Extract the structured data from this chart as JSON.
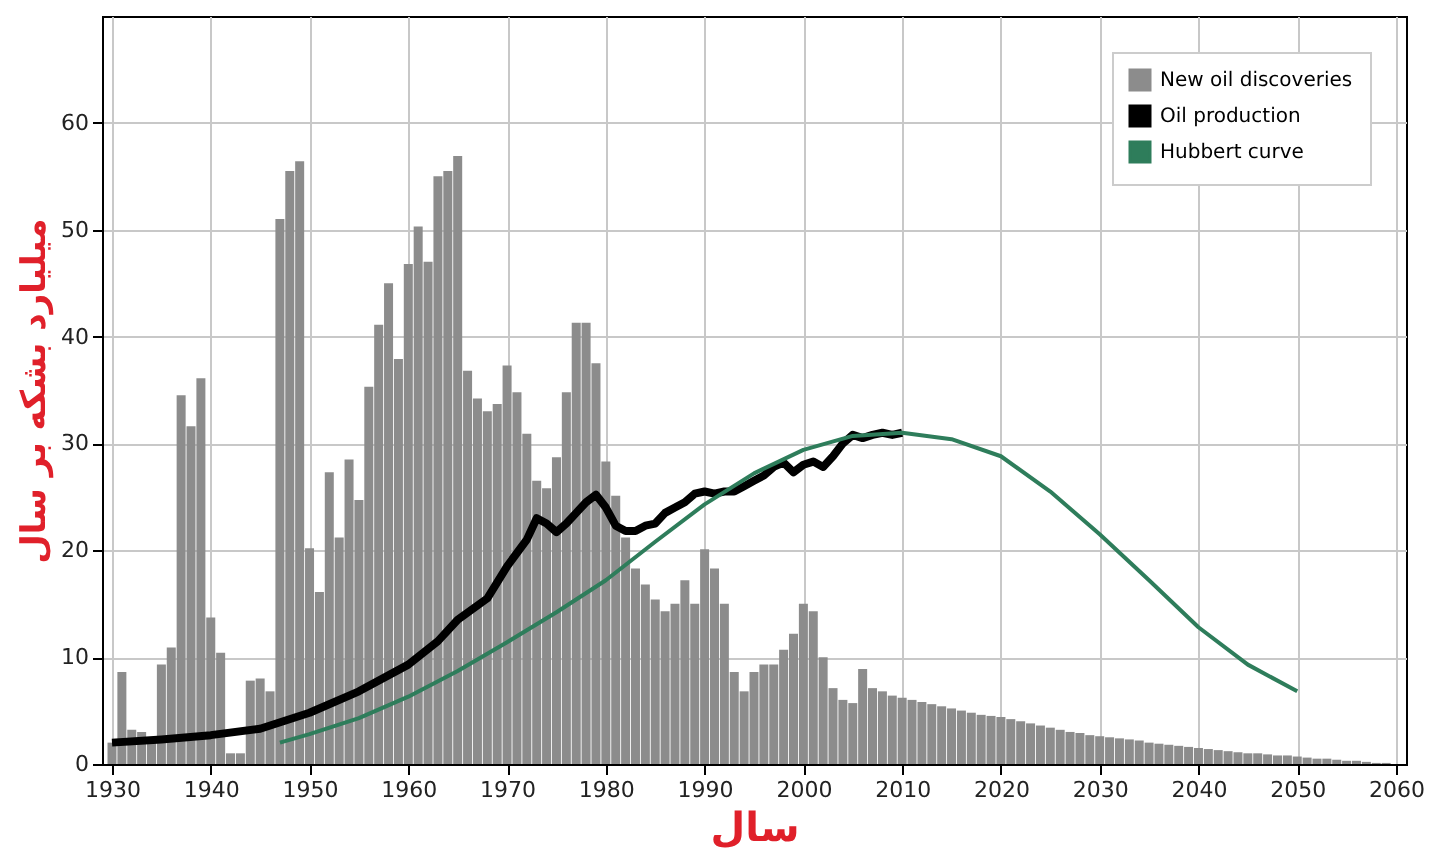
{
  "chart_data": {
    "type": "bar",
    "xlabel": "سال",
    "ylabel": "میلیارد بشکه بر سال",
    "xlim": [
      1930,
      2060
    ],
    "xticks": [
      1930,
      1940,
      1950,
      1960,
      1970,
      1980,
      1990,
      2000,
      2010,
      2020,
      2030,
      2040,
      2050,
      2060
    ],
    "ylim": [
      0,
      70
    ],
    "yticks": [
      0,
      10,
      20,
      30,
      40,
      50,
      60
    ],
    "grid": true,
    "legend": "top right",
    "series": [
      {
        "name": "New oil discoveries",
        "color": "#8c8c8c",
        "x": [
          1930,
          1931,
          1932,
          1933,
          1934,
          1935,
          1936,
          1937,
          1938,
          1939,
          1940,
          1941,
          1942,
          1943,
          1944,
          1945,
          1946,
          1947,
          1948,
          1949,
          1950,
          1951,
          1952,
          1953,
          1954,
          1955,
          1956,
          1957,
          1958,
          1959,
          1960,
          1961,
          1962,
          1963,
          1964,
          1965,
          1966,
          1967,
          1968,
          1969,
          1970,
          1971,
          1972,
          1973,
          1974,
          1975,
          1976,
          1977,
          1978,
          1979,
          1980,
          1981,
          1982,
          1983,
          1984,
          1985,
          1986,
          1987,
          1988,
          1989,
          1990,
          1991,
          1992,
          1993,
          1994,
          1995,
          1996,
          1997,
          1998,
          1999,
          2000,
          2001,
          2002,
          2003,
          2004,
          2005,
          2006,
          2007,
          2008,
          2009,
          2010,
          2011,
          2012,
          2013,
          2014,
          2015,
          2016,
          2017,
          2018,
          2019,
          2020,
          2021,
          2022,
          2023,
          2024,
          2025,
          2026,
          2027,
          2028,
          2029,
          2030,
          2031,
          2032,
          2033,
          2034,
          2035,
          2036,
          2037,
          2038,
          2039,
          2040,
          2041,
          2042,
          2043,
          2044,
          2045,
          2046,
          2047,
          2048,
          2049,
          2050,
          2051,
          2052,
          2053,
          2054,
          2055,
          2056,
          2057,
          2058,
          2059
        ],
        "values": [
          2,
          8.6,
          3.2,
          3,
          2.5,
          9.3,
          10.9,
          34.5,
          31.6,
          36.1,
          13.7,
          10.4,
          1,
          1,
          7.8,
          8,
          6.8,
          51,
          55.5,
          56.4,
          20.2,
          16.1,
          27.3,
          21.2,
          28.5,
          24.7,
          35.3,
          41.1,
          45,
          37.9,
          46.8,
          50.3,
          47,
          55,
          55.5,
          56.9,
          36.8,
          34.2,
          33,
          33.7,
          37.3,
          34.8,
          30.9,
          26.5,
          25.8,
          28.7,
          34.8,
          41.3,
          41.3,
          37.5,
          28.3,
          25.1,
          21.2,
          18.3,
          16.8,
          15.4,
          14.3,
          15,
          17.2,
          15,
          20.1,
          18.3,
          15,
          8.6,
          6.8,
          8.6,
          9.3,
          9.3,
          10.7,
          12.2,
          15,
          14.3,
          10,
          7.1,
          6,
          5.7,
          8.9,
          7.1,
          6.8,
          6.4,
          6.2,
          6,
          5.8,
          5.6,
          5.4,
          5.2,
          5,
          4.8,
          4.6,
          4.5,
          4.4,
          4.2,
          4,
          3.8,
          3.6,
          3.4,
          3.2,
          3,
          2.9,
          2.7,
          2.6,
          2.5,
          2.4,
          2.3,
          2.2,
          2,
          1.9,
          1.8,
          1.7,
          1.6,
          1.5,
          1.4,
          1.3,
          1.2,
          1.1,
          1,
          1,
          0.9,
          0.8,
          0.8,
          0.7,
          0.6,
          0.5,
          0.5,
          0.4,
          0.3,
          0.3,
          0.2,
          0.1,
          0.1
        ]
      },
      {
        "name": "Oil production",
        "type": "line",
        "color": "#000000",
        "x": [
          1930,
          1935,
          1940,
          1945,
          1950,
          1955,
          1960,
          1963,
          1965,
          1968,
          1970,
          1972,
          1973,
          1974,
          1975,
          1976,
          1977,
          1978,
          1979,
          1980,
          1981,
          1982,
          1983,
          1984,
          1985,
          1986,
          1987,
          1988,
          1989,
          1990,
          1991,
          1992,
          1993,
          1994,
          1995,
          1996,
          1997,
          1998,
          1999,
          2000,
          2001,
          2002,
          2003,
          2004,
          2005,
          2006,
          2007,
          2008,
          2009,
          2010
        ],
        "values": [
          2,
          2.3,
          2.7,
          3.3,
          4.8,
          6.8,
          9.3,
          11.5,
          13.5,
          15.5,
          18.5,
          21,
          23,
          22.5,
          21.7,
          22.5,
          23.5,
          24.5,
          25.2,
          24,
          22.3,
          21.8,
          21.8,
          22.3,
          22.5,
          23.5,
          24,
          24.5,
          25.3,
          25.5,
          25.3,
          25.5,
          25.5,
          26,
          26.5,
          27,
          27.8,
          28.2,
          27.3,
          28,
          28.3,
          27.8,
          28.8,
          30,
          30.8,
          30.5,
          30.8,
          31,
          30.8,
          31
        ]
      },
      {
        "name": "Hubbert curve",
        "type": "line",
        "color": "#2e7d5b",
        "x": [
          1947,
          1950,
          1955,
          1960,
          1965,
          1970,
          1975,
          1980,
          1985,
          1990,
          1995,
          2000,
          2005,
          2010,
          2015,
          2020,
          2025,
          2030,
          2035,
          2040,
          2045,
          2050
        ],
        "values": [
          2,
          2.8,
          4.3,
          6.3,
          8.7,
          11.4,
          14.2,
          17.2,
          20.8,
          24.3,
          27.2,
          29.4,
          30.7,
          31,
          30.4,
          28.8,
          25.5,
          21.5,
          17.2,
          12.8,
          9.3,
          6.8
        ]
      }
    ]
  }
}
